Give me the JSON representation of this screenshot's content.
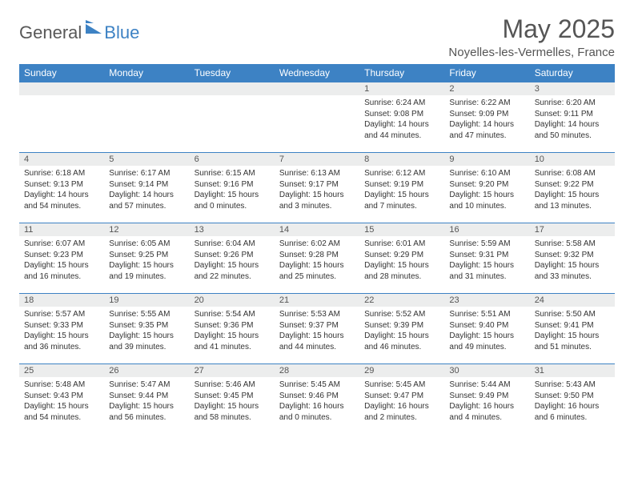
{
  "logo": {
    "general": "General",
    "blue": "Blue"
  },
  "title": "May 2025",
  "location": "Noyelles-les-Vermelles, France",
  "colors": {
    "header_bg": "#3d82c4",
    "header_text": "#ffffff",
    "daynum_bg": "#eceded",
    "text": "#555555",
    "body_text": "#333333"
  },
  "weekdays": [
    "Sunday",
    "Monday",
    "Tuesday",
    "Wednesday",
    "Thursday",
    "Friday",
    "Saturday"
  ],
  "weeks": [
    [
      null,
      null,
      null,
      null,
      {
        "n": "1",
        "sunrise": "6:24 AM",
        "sunset": "9:08 PM",
        "daylight": "14 hours and 44 minutes."
      },
      {
        "n": "2",
        "sunrise": "6:22 AM",
        "sunset": "9:09 PM",
        "daylight": "14 hours and 47 minutes."
      },
      {
        "n": "3",
        "sunrise": "6:20 AM",
        "sunset": "9:11 PM",
        "daylight": "14 hours and 50 minutes."
      }
    ],
    [
      {
        "n": "4",
        "sunrise": "6:18 AM",
        "sunset": "9:13 PM",
        "daylight": "14 hours and 54 minutes."
      },
      {
        "n": "5",
        "sunrise": "6:17 AM",
        "sunset": "9:14 PM",
        "daylight": "14 hours and 57 minutes."
      },
      {
        "n": "6",
        "sunrise": "6:15 AM",
        "sunset": "9:16 PM",
        "daylight": "15 hours and 0 minutes."
      },
      {
        "n": "7",
        "sunrise": "6:13 AM",
        "sunset": "9:17 PM",
        "daylight": "15 hours and 3 minutes."
      },
      {
        "n": "8",
        "sunrise": "6:12 AM",
        "sunset": "9:19 PM",
        "daylight": "15 hours and 7 minutes."
      },
      {
        "n": "9",
        "sunrise": "6:10 AM",
        "sunset": "9:20 PM",
        "daylight": "15 hours and 10 minutes."
      },
      {
        "n": "10",
        "sunrise": "6:08 AM",
        "sunset": "9:22 PM",
        "daylight": "15 hours and 13 minutes."
      }
    ],
    [
      {
        "n": "11",
        "sunrise": "6:07 AM",
        "sunset": "9:23 PM",
        "daylight": "15 hours and 16 minutes."
      },
      {
        "n": "12",
        "sunrise": "6:05 AM",
        "sunset": "9:25 PM",
        "daylight": "15 hours and 19 minutes."
      },
      {
        "n": "13",
        "sunrise": "6:04 AM",
        "sunset": "9:26 PM",
        "daylight": "15 hours and 22 minutes."
      },
      {
        "n": "14",
        "sunrise": "6:02 AM",
        "sunset": "9:28 PM",
        "daylight": "15 hours and 25 minutes."
      },
      {
        "n": "15",
        "sunrise": "6:01 AM",
        "sunset": "9:29 PM",
        "daylight": "15 hours and 28 minutes."
      },
      {
        "n": "16",
        "sunrise": "5:59 AM",
        "sunset": "9:31 PM",
        "daylight": "15 hours and 31 minutes."
      },
      {
        "n": "17",
        "sunrise": "5:58 AM",
        "sunset": "9:32 PM",
        "daylight": "15 hours and 33 minutes."
      }
    ],
    [
      {
        "n": "18",
        "sunrise": "5:57 AM",
        "sunset": "9:33 PM",
        "daylight": "15 hours and 36 minutes."
      },
      {
        "n": "19",
        "sunrise": "5:55 AM",
        "sunset": "9:35 PM",
        "daylight": "15 hours and 39 minutes."
      },
      {
        "n": "20",
        "sunrise": "5:54 AM",
        "sunset": "9:36 PM",
        "daylight": "15 hours and 41 minutes."
      },
      {
        "n": "21",
        "sunrise": "5:53 AM",
        "sunset": "9:37 PM",
        "daylight": "15 hours and 44 minutes."
      },
      {
        "n": "22",
        "sunrise": "5:52 AM",
        "sunset": "9:39 PM",
        "daylight": "15 hours and 46 minutes."
      },
      {
        "n": "23",
        "sunrise": "5:51 AM",
        "sunset": "9:40 PM",
        "daylight": "15 hours and 49 minutes."
      },
      {
        "n": "24",
        "sunrise": "5:50 AM",
        "sunset": "9:41 PM",
        "daylight": "15 hours and 51 minutes."
      }
    ],
    [
      {
        "n": "25",
        "sunrise": "5:48 AM",
        "sunset": "9:43 PM",
        "daylight": "15 hours and 54 minutes."
      },
      {
        "n": "26",
        "sunrise": "5:47 AM",
        "sunset": "9:44 PM",
        "daylight": "15 hours and 56 minutes."
      },
      {
        "n": "27",
        "sunrise": "5:46 AM",
        "sunset": "9:45 PM",
        "daylight": "15 hours and 58 minutes."
      },
      {
        "n": "28",
        "sunrise": "5:45 AM",
        "sunset": "9:46 PM",
        "daylight": "16 hours and 0 minutes."
      },
      {
        "n": "29",
        "sunrise": "5:45 AM",
        "sunset": "9:47 PM",
        "daylight": "16 hours and 2 minutes."
      },
      {
        "n": "30",
        "sunrise": "5:44 AM",
        "sunset": "9:49 PM",
        "daylight": "16 hours and 4 minutes."
      },
      {
        "n": "31",
        "sunrise": "5:43 AM",
        "sunset": "9:50 PM",
        "daylight": "16 hours and 6 minutes."
      }
    ]
  ],
  "labels": {
    "sunrise": "Sunrise: ",
    "sunset": "Sunset: ",
    "daylight": "Daylight: "
  }
}
